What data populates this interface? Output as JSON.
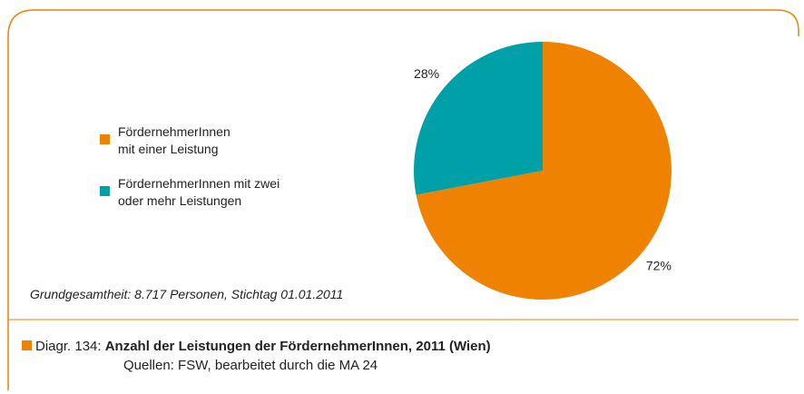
{
  "chart_data": {
    "type": "pie",
    "categories": [
      "FördernehmerInnen\nmit einer Leistung",
      "FördernehmerInnen mit zwei\noder mehr Leistungen"
    ],
    "values": [
      72,
      28
    ],
    "value_labels": [
      "72%",
      "28%"
    ],
    "colors": [
      "#ef8200",
      "#00a0a8"
    ],
    "note": "Grundgesamtheit:  8.717 Personen, Stichtag 01.01.2011"
  },
  "caption": {
    "label": "Diagr. 134:",
    "title": "Anzahl der Leistungen der FördernehmerInnen, 2011 (Wien)",
    "source": "Quellen: FSW, bearbeitet durch die MA 24"
  }
}
